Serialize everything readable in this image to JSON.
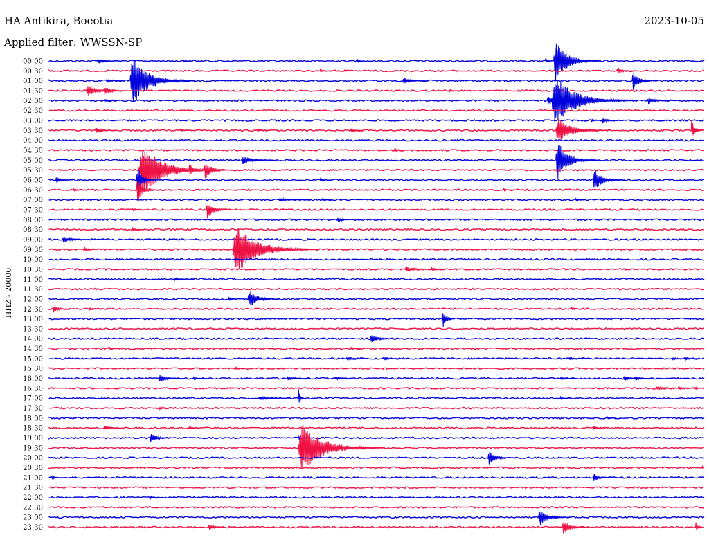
{
  "header": {
    "station": "HA Antikira, Boeotia",
    "date": "2023-10-05",
    "filter": "Applied filter: WWSSN-SP"
  },
  "colors": {
    "even_trace": "#0000dd",
    "odd_trace": "#ee1144",
    "text": "#000000",
    "background": "#ffffff"
  },
  "chart_data": {
    "type": "line",
    "subtype": "helicorder",
    "title": "HA Antikira, Boeotia",
    "subtitle": "Applied filter: WWSSN-SP",
    "date": "2023-10-05",
    "ylabel": "HHZ - 20000",
    "xlabel": "",
    "grid": false,
    "row_minutes": 30,
    "x_unit_note": "time within row, minutes 0-30",
    "rows": [
      {
        "label": "00:00",
        "events": [
          [
            2.2,
            0.12,
            1.0
          ],
          [
            6.1,
            0.03,
            0.4
          ],
          [
            14.1,
            0.03,
            0.4
          ],
          [
            22.7,
            0.06,
            0.6
          ],
          [
            23.1,
            0.85,
            2.2
          ]
        ]
      },
      {
        "label": "00:30",
        "events": [
          [
            12.4,
            0.05,
            0.5
          ],
          [
            13.5,
            0.03,
            0.3
          ],
          [
            26.0,
            0.15,
            0.8
          ]
        ]
      },
      {
        "label": "01:00",
        "events": [
          [
            2.6,
            0.08,
            0.8
          ],
          [
            3.7,
            1.0,
            3.0
          ],
          [
            16.2,
            0.15,
            1.2
          ],
          [
            26.7,
            0.4,
            1.2
          ]
        ]
      },
      {
        "label": "01:30",
        "events": [
          [
            1.7,
            0.25,
            1.5
          ],
          [
            2.5,
            0.18,
            1.2
          ],
          [
            18.3,
            0.04,
            0.5
          ]
        ]
      },
      {
        "label": "02:00",
        "events": [
          [
            2.5,
            0.08,
            0.8
          ],
          [
            22.8,
            0.2,
            1.2
          ],
          [
            23.0,
            1.0,
            4.0
          ],
          [
            27.4,
            0.15,
            1.2
          ]
        ]
      },
      {
        "label": "02:30",
        "events": []
      },
      {
        "label": "03:00",
        "events": [
          [
            24.8,
            0.05,
            0.6
          ],
          [
            25.3,
            0.12,
            1.0
          ]
        ]
      },
      {
        "label": "03:30",
        "events": [
          [
            2.1,
            0.12,
            1.0
          ],
          [
            6.0,
            0.04,
            0.5
          ],
          [
            9.5,
            0.04,
            0.5
          ],
          [
            13.8,
            0.1,
            0.6
          ],
          [
            23.2,
            0.5,
            2.5
          ],
          [
            29.4,
            0.45,
            1.0
          ]
        ]
      },
      {
        "label": "04:00",
        "events": []
      },
      {
        "label": "04:30",
        "events": [
          [
            15.8,
            0.06,
            0.6
          ]
        ]
      },
      {
        "label": "05:00",
        "events": [
          [
            8.8,
            0.2,
            1.5
          ],
          [
            23.2,
            0.8,
            2.0
          ]
        ]
      },
      {
        "label": "05:30",
        "events": [
          [
            4.1,
            1.0,
            4.0
          ],
          [
            6.4,
            0.3,
            0.7
          ],
          [
            7.1,
            0.4,
            1.2
          ]
        ]
      },
      {
        "label": "06:00",
        "events": [
          [
            0.3,
            0.15,
            0.8
          ],
          [
            4.0,
            0.6,
            1.0
          ],
          [
            12.4,
            0.05,
            0.6
          ],
          [
            24.9,
            0.5,
            1.5
          ]
        ]
      },
      {
        "label": "06:30",
        "events": [
          [
            1.1,
            0.06,
            0.6
          ],
          [
            4.0,
            0.5,
            1.0
          ],
          [
            20.8,
            0.05,
            0.5
          ]
        ]
      },
      {
        "label": "07:00",
        "events": [
          [
            10.5,
            0.08,
            1.5
          ],
          [
            12.5,
            0.04,
            0.5
          ],
          [
            24.1,
            0.04,
            0.5
          ]
        ]
      },
      {
        "label": "07:30",
        "events": [
          [
            3.8,
            0.06,
            0.5
          ],
          [
            7.2,
            0.35,
            1.2
          ]
        ]
      },
      {
        "label": "08:00",
        "events": [
          [
            13.2,
            0.12,
            0.8
          ]
        ]
      },
      {
        "label": "08:30",
        "events": [
          [
            3.8,
            0.08,
            0.6
          ]
        ]
      },
      {
        "label": "09:00",
        "events": [
          [
            0.6,
            0.12,
            1.5
          ]
        ]
      },
      {
        "label": "09:30",
        "events": [
          [
            1.6,
            0.1,
            0.6
          ],
          [
            8.4,
            1.0,
            4.0
          ],
          [
            10.9,
            0.05,
            0.5
          ]
        ]
      },
      {
        "label": "10:00",
        "events": []
      },
      {
        "label": "10:30",
        "events": [
          [
            16.3,
            0.12,
            1.5
          ],
          [
            17.5,
            0.1,
            0.6
          ]
        ]
      },
      {
        "label": "11:00",
        "events": [
          [
            5.7,
            0.04,
            1.0
          ]
        ]
      },
      {
        "label": "11:30",
        "events": []
      },
      {
        "label": "12:00",
        "events": [
          [
            9.1,
            0.4,
            1.5
          ],
          [
            8.2,
            0.05,
            0.6
          ]
        ]
      },
      {
        "label": "12:30",
        "events": [
          [
            0.15,
            0.18,
            0.8
          ],
          [
            1.8,
            0.06,
            0.6
          ],
          [
            23.9,
            0.06,
            0.6
          ]
        ]
      },
      {
        "label": "13:00",
        "events": [
          [
            18.0,
            0.4,
            0.6
          ]
        ]
      },
      {
        "label": "13:30",
        "events": []
      },
      {
        "label": "14:00",
        "events": [
          [
            14.7,
            0.2,
            1.2
          ]
        ]
      },
      {
        "label": "14:30",
        "events": [
          [
            2.7,
            0.04,
            0.5
          ],
          [
            13.8,
            0.04,
            0.5
          ]
        ]
      },
      {
        "label": "15:00",
        "events": [
          [
            13.6,
            0.06,
            1.0
          ],
          [
            15.3,
            0.1,
            0.8
          ],
          [
            23.8,
            0.06,
            0.8
          ],
          [
            28.5,
            0.06,
            0.8
          ],
          [
            29.1,
            0.1,
            0.6
          ]
        ]
      },
      {
        "label": "15:30",
        "events": [
          [
            8.5,
            0.04,
            0.5
          ]
        ]
      },
      {
        "label": "16:00",
        "events": [
          [
            5.0,
            0.18,
            1.2
          ],
          [
            6.6,
            0.05,
            0.6
          ],
          [
            10.9,
            0.08,
            1.0
          ],
          [
            13.1,
            0.06,
            0.8
          ],
          [
            23.4,
            0.06,
            0.8
          ],
          [
            26.3,
            0.1,
            1.0
          ],
          [
            26.8,
            0.1,
            0.8
          ]
        ]
      },
      {
        "label": "16:30",
        "events": [
          [
            27.8,
            0.08,
            1.2
          ],
          [
            28.8,
            0.06,
            0.8
          ],
          [
            29.6,
            0.06,
            0.6
          ]
        ]
      },
      {
        "label": "17:00",
        "events": [
          [
            9.6,
            0.08,
            1.5
          ],
          [
            11.4,
            0.5,
            0.3
          ],
          [
            23.4,
            0.05,
            0.5
          ]
        ]
      },
      {
        "label": "17:30",
        "events": [
          [
            5.0,
            0.06,
            0.8
          ]
        ]
      },
      {
        "label": "18:00",
        "events": [
          [
            25.5,
            0.04,
            0.5
          ]
        ]
      },
      {
        "label": "18:30",
        "events": [
          [
            2.5,
            0.1,
            1.0
          ],
          [
            6.4,
            0.05,
            0.5
          ],
          [
            24.9,
            0.08,
            0.6
          ]
        ]
      },
      {
        "label": "19:00",
        "events": [
          [
            4.6,
            0.2,
            1.2
          ],
          [
            11.4,
            0.1,
            0.5
          ]
        ]
      },
      {
        "label": "19:30",
        "events": [
          [
            11.4,
            1.0,
            4.0
          ]
        ]
      },
      {
        "label": "20:00",
        "events": [
          [
            20.1,
            0.3,
            1.2
          ]
        ]
      },
      {
        "label": "20:30",
        "events": [
          [
            29.9,
            0.3,
            1.0
          ]
        ]
      },
      {
        "label": "21:00",
        "events": [
          [
            0.1,
            0.1,
            0.6
          ],
          [
            24.9,
            0.2,
            0.8
          ]
        ]
      },
      {
        "label": "21:30",
        "events": []
      },
      {
        "label": "22:00",
        "events": [
          [
            4.6,
            0.05,
            0.6
          ]
        ]
      },
      {
        "label": "22:30",
        "events": []
      },
      {
        "label": "23:00",
        "events": [
          [
            22.4,
            0.35,
            1.5
          ]
        ]
      },
      {
        "label": "23:30",
        "events": [
          [
            7.3,
            0.15,
            0.8
          ],
          [
            23.5,
            0.3,
            1.2
          ],
          [
            29.6,
            0.25,
            0.8
          ]
        ]
      }
    ]
  }
}
